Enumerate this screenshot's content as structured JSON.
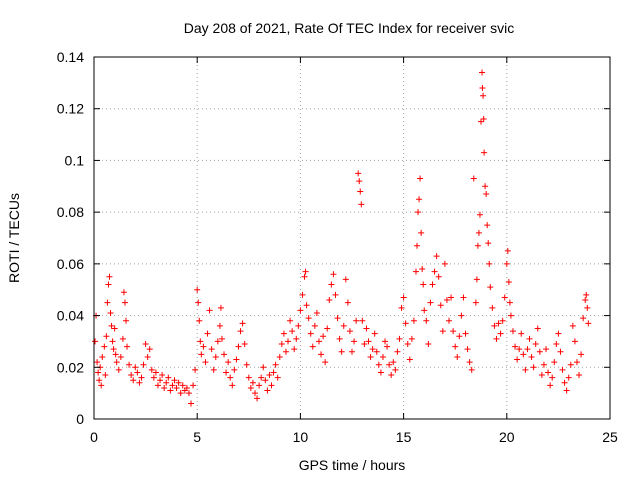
{
  "chart_data": {
    "type": "scatter",
    "title": "Day 208 of 2021, Rate Of TEC Index for receiver svic",
    "xlabel": "GPS time / hours",
    "ylabel": "ROTI / TECUs",
    "xlim": [
      0,
      25
    ],
    "ylim": [
      0,
      0.14
    ],
    "x_ticks": [
      0,
      5,
      10,
      15,
      20,
      25
    ],
    "x_tick_labels": [
      "0",
      "5",
      "10",
      "15",
      "20",
      "25"
    ],
    "y_ticks": [
      0,
      0.02,
      0.04,
      0.06,
      0.08,
      0.1,
      0.12,
      0.14
    ],
    "y_tick_labels": [
      "0",
      "0.02",
      "0.04",
      "0.06",
      "0.08",
      "0.1",
      "0.12",
      "0.14"
    ],
    "grid": true,
    "marker": "plus",
    "color": "#ff0000",
    "series": [
      {
        "points": [
          [
            0.05,
            0.03
          ],
          [
            0.1,
            0.04
          ],
          [
            0.15,
            0.022
          ],
          [
            0.2,
            0.018
          ],
          [
            0.25,
            0.015
          ],
          [
            0.3,
            0.02
          ],
          [
            0.35,
            0.013
          ],
          [
            0.4,
            0.024
          ],
          [
            0.5,
            0.028
          ],
          [
            0.55,
            0.017
          ],
          [
            0.6,
            0.032
          ],
          [
            0.65,
            0.045
          ],
          [
            0.7,
            0.052
          ],
          [
            0.75,
            0.055
          ],
          [
            0.8,
            0.041
          ],
          [
            0.85,
            0.036
          ],
          [
            0.9,
            0.03
          ],
          [
            0.95,
            0.027
          ],
          [
            1.0,
            0.035
          ],
          [
            1.05,
            0.025
          ],
          [
            1.1,
            0.022
          ],
          [
            1.2,
            0.019
          ],
          [
            1.3,
            0.024
          ],
          [
            1.4,
            0.031
          ],
          [
            1.45,
            0.049
          ],
          [
            1.5,
            0.045
          ],
          [
            1.55,
            0.038
          ],
          [
            1.6,
            0.028
          ],
          [
            1.7,
            0.021
          ],
          [
            1.8,
            0.017
          ],
          [
            1.9,
            0.015
          ],
          [
            2.0,
            0.02
          ],
          [
            2.1,
            0.018
          ],
          [
            2.2,
            0.014
          ],
          [
            2.3,
            0.016
          ],
          [
            2.4,
            0.021
          ],
          [
            2.5,
            0.029
          ],
          [
            2.6,
            0.024
          ],
          [
            2.7,
            0.027
          ],
          [
            2.8,
            0.019
          ],
          [
            2.9,
            0.016
          ],
          [
            3.0,
            0.018
          ],
          [
            3.1,
            0.013
          ],
          [
            3.2,
            0.015
          ],
          [
            3.3,
            0.017
          ],
          [
            3.4,
            0.012
          ],
          [
            3.5,
            0.014
          ],
          [
            3.6,
            0.016
          ],
          [
            3.7,
            0.011
          ],
          [
            3.8,
            0.013
          ],
          [
            3.9,
            0.015
          ],
          [
            4.0,
            0.012
          ],
          [
            4.1,
            0.014
          ],
          [
            4.2,
            0.01
          ],
          [
            4.3,
            0.013
          ],
          [
            4.4,
            0.011
          ],
          [
            4.5,
            0.012
          ],
          [
            4.6,
            0.01
          ],
          [
            4.7,
            0.006
          ],
          [
            4.8,
            0.013
          ],
          [
            4.9,
            0.019
          ],
          [
            5.0,
            0.05
          ],
          [
            5.05,
            0.045
          ],
          [
            5.1,
            0.038
          ],
          [
            5.15,
            0.03
          ],
          [
            5.2,
            0.025
          ],
          [
            5.3,
            0.028
          ],
          [
            5.4,
            0.022
          ],
          [
            5.5,
            0.033
          ],
          [
            5.6,
            0.042
          ],
          [
            5.7,
            0.027
          ],
          [
            5.8,
            0.019
          ],
          [
            5.9,
            0.024
          ],
          [
            6.0,
            0.03
          ],
          [
            6.1,
            0.036
          ],
          [
            6.15,
            0.043
          ],
          [
            6.2,
            0.031
          ],
          [
            6.3,
            0.025
          ],
          [
            6.4,
            0.018
          ],
          [
            6.5,
            0.022
          ],
          [
            6.6,
            0.016
          ],
          [
            6.7,
            0.013
          ],
          [
            6.8,
            0.019
          ],
          [
            6.9,
            0.023
          ],
          [
            7.0,
            0.028
          ],
          [
            7.1,
            0.034
          ],
          [
            7.2,
            0.037
          ],
          [
            7.3,
            0.029
          ],
          [
            7.4,
            0.021
          ],
          [
            7.5,
            0.016
          ],
          [
            7.6,
            0.012
          ],
          [
            7.7,
            0.014
          ],
          [
            7.8,
            0.01
          ],
          [
            7.9,
            0.008
          ],
          [
            8.0,
            0.013
          ],
          [
            8.1,
            0.016
          ],
          [
            8.2,
            0.02
          ],
          [
            8.3,
            0.015
          ],
          [
            8.4,
            0.011
          ],
          [
            8.5,
            0.017
          ],
          [
            8.6,
            0.013
          ],
          [
            8.7,
            0.018
          ],
          [
            8.8,
            0.021
          ],
          [
            8.9,
            0.016
          ],
          [
            9.0,
            0.024
          ],
          [
            9.1,
            0.029
          ],
          [
            9.2,
            0.033
          ],
          [
            9.3,
            0.026
          ],
          [
            9.4,
            0.03
          ],
          [
            9.5,
            0.038
          ],
          [
            9.6,
            0.034
          ],
          [
            9.7,
            0.027
          ],
          [
            9.8,
            0.031
          ],
          [
            9.9,
            0.036
          ],
          [
            10.0,
            0.042
          ],
          [
            10.1,
            0.048
          ],
          [
            10.2,
            0.055
          ],
          [
            10.25,
            0.057
          ],
          [
            10.3,
            0.044
          ],
          [
            10.4,
            0.039
          ],
          [
            10.5,
            0.033
          ],
          [
            10.6,
            0.028
          ],
          [
            10.7,
            0.036
          ],
          [
            10.8,
            0.041
          ],
          [
            10.9,
            0.03
          ],
          [
            11.0,
            0.025
          ],
          [
            11.1,
            0.032
          ],
          [
            11.2,
            0.022
          ],
          [
            11.3,
            0.035
          ],
          [
            11.4,
            0.046
          ],
          [
            11.5,
            0.052
          ],
          [
            11.6,
            0.056
          ],
          [
            11.7,
            0.048
          ],
          [
            11.8,
            0.039
          ],
          [
            11.9,
            0.031
          ],
          [
            12.0,
            0.026
          ],
          [
            12.1,
            0.036
          ],
          [
            12.2,
            0.054
          ],
          [
            12.3,
            0.045
          ],
          [
            12.4,
            0.034
          ],
          [
            12.5,
            0.026
          ],
          [
            12.6,
            0.03
          ],
          [
            12.7,
            0.038
          ],
          [
            12.8,
            0.095
          ],
          [
            12.85,
            0.092
          ],
          [
            12.9,
            0.088
          ],
          [
            12.95,
            0.083
          ],
          [
            13.0,
            0.038
          ],
          [
            13.1,
            0.029
          ],
          [
            13.2,
            0.035
          ],
          [
            13.3,
            0.03
          ],
          [
            13.4,
            0.024
          ],
          [
            13.5,
            0.027
          ],
          [
            13.6,
            0.033
          ],
          [
            13.7,
            0.026
          ],
          [
            13.8,
            0.021
          ],
          [
            13.9,
            0.018
          ],
          [
            14.0,
            0.024
          ],
          [
            14.1,
            0.03
          ],
          [
            14.2,
            0.028
          ],
          [
            14.3,
            0.021
          ],
          [
            14.4,
            0.017
          ],
          [
            14.5,
            0.022
          ],
          [
            14.6,
            0.019
          ],
          [
            14.7,
            0.026
          ],
          [
            14.8,
            0.031
          ],
          [
            14.9,
            0.043
          ],
          [
            15.0,
            0.047
          ],
          [
            15.1,
            0.037
          ],
          [
            15.2,
            0.029
          ],
          [
            15.3,
            0.023
          ],
          [
            15.4,
            0.031
          ],
          [
            15.5,
            0.038
          ],
          [
            15.6,
            0.057
          ],
          [
            15.65,
            0.067
          ],
          [
            15.7,
            0.08
          ],
          [
            15.75,
            0.085
          ],
          [
            15.8,
            0.093
          ],
          [
            15.85,
            0.072
          ],
          [
            15.9,
            0.058
          ],
          [
            15.95,
            0.052
          ],
          [
            16.0,
            0.042
          ],
          [
            16.1,
            0.038
          ],
          [
            16.2,
            0.029
          ],
          [
            16.3,
            0.045
          ],
          [
            16.4,
            0.052
          ],
          [
            16.5,
            0.057
          ],
          [
            16.6,
            0.063
          ],
          [
            16.7,
            0.055
          ],
          [
            16.8,
            0.044
          ],
          [
            16.9,
            0.034
          ],
          [
            17.0,
            0.06
          ],
          [
            17.1,
            0.046
          ],
          [
            17.2,
            0.038
          ],
          [
            17.3,
            0.047
          ],
          [
            17.4,
            0.034
          ],
          [
            17.5,
            0.028
          ],
          [
            17.6,
            0.024
          ],
          [
            17.7,
            0.032
          ],
          [
            17.8,
            0.04
          ],
          [
            17.9,
            0.047
          ],
          [
            18.0,
            0.033
          ],
          [
            18.1,
            0.027
          ],
          [
            18.2,
            0.022
          ],
          [
            18.3,
            0.019
          ],
          [
            18.4,
            0.093
          ],
          [
            18.5,
            0.045
          ],
          [
            18.55,
            0.054
          ],
          [
            18.6,
            0.067
          ],
          [
            18.65,
            0.072
          ],
          [
            18.7,
            0.079
          ],
          [
            18.75,
            0.115
          ],
          [
            18.8,
            0.134
          ],
          [
            18.82,
            0.128
          ],
          [
            18.85,
            0.125
          ],
          [
            18.88,
            0.116
          ],
          [
            18.9,
            0.103
          ],
          [
            18.95,
            0.09
          ],
          [
            19.0,
            0.087
          ],
          [
            19.05,
            0.075
          ],
          [
            19.1,
            0.068
          ],
          [
            19.15,
            0.06
          ],
          [
            19.2,
            0.051
          ],
          [
            19.3,
            0.043
          ],
          [
            19.4,
            0.036
          ],
          [
            19.5,
            0.031
          ],
          [
            19.6,
            0.037
          ],
          [
            19.7,
            0.033
          ],
          [
            19.8,
            0.038
          ],
          [
            19.9,
            0.047
          ],
          [
            20.0,
            0.06
          ],
          [
            20.05,
            0.065
          ],
          [
            20.1,
            0.053
          ],
          [
            20.15,
            0.045
          ],
          [
            20.2,
            0.04
          ],
          [
            20.3,
            0.034
          ],
          [
            20.4,
            0.028
          ],
          [
            20.5,
            0.023
          ],
          [
            20.6,
            0.027
          ],
          [
            20.7,
            0.033
          ],
          [
            20.8,
            0.025
          ],
          [
            20.9,
            0.019
          ],
          [
            21.0,
            0.027
          ],
          [
            21.1,
            0.031
          ],
          [
            21.2,
            0.024
          ],
          [
            21.3,
            0.02
          ],
          [
            21.4,
            0.029
          ],
          [
            21.5,
            0.035
          ],
          [
            21.6,
            0.026
          ],
          [
            21.7,
            0.017
          ],
          [
            21.8,
            0.021
          ],
          [
            21.9,
            0.027
          ],
          [
            22.0,
            0.018
          ],
          [
            22.1,
            0.013
          ],
          [
            22.2,
            0.016
          ],
          [
            22.3,
            0.022
          ],
          [
            22.4,
            0.029
          ],
          [
            22.5,
            0.033
          ],
          [
            22.6,
            0.026
          ],
          [
            22.7,
            0.019
          ],
          [
            22.8,
            0.014
          ],
          [
            22.9,
            0.011
          ],
          [
            23.0,
            0.016
          ],
          [
            23.1,
            0.021
          ],
          [
            23.2,
            0.036
          ],
          [
            23.3,
            0.03
          ],
          [
            23.4,
            0.022
          ],
          [
            23.5,
            0.017
          ],
          [
            23.6,
            0.025
          ],
          [
            23.7,
            0.039
          ],
          [
            23.8,
            0.046
          ],
          [
            23.85,
            0.048
          ],
          [
            23.9,
            0.043
          ],
          [
            23.95,
            0.037
          ]
        ]
      }
    ]
  }
}
